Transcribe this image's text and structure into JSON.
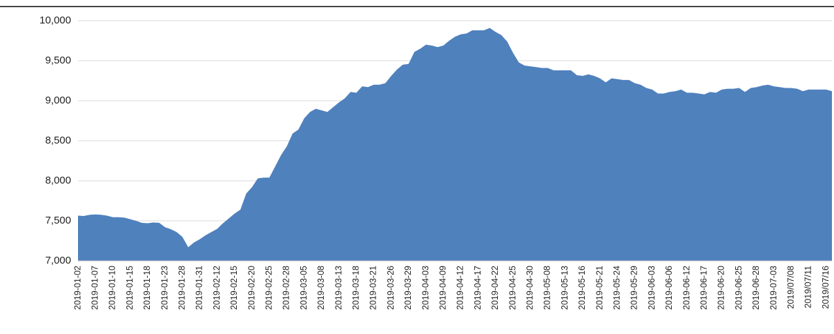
{
  "chart_data": {
    "type": "area",
    "color": "#4f81bd",
    "grid": true,
    "categories": [
      "2019-01-02",
      null,
      null,
      "2019-01-07",
      null,
      null,
      "2019-01-10",
      null,
      null,
      "2019-01-15",
      null,
      null,
      "2019-01-18",
      null,
      null,
      "2019-01-23",
      null,
      null,
      "2019-01-28",
      null,
      null,
      "2019-01-31",
      null,
      null,
      "2019-02-12",
      null,
      null,
      "2019-02-15",
      null,
      null,
      "2019-02-20",
      null,
      null,
      "2019-02-25",
      null,
      null,
      "2019-02-28",
      null,
      null,
      "2019-03-05",
      null,
      null,
      "2019-03-08",
      null,
      null,
      "2019-03-13",
      null,
      null,
      "2019-03-18",
      null,
      null,
      "2019-03-21",
      null,
      null,
      "2019-03-26",
      null,
      null,
      "2019-03-29",
      null,
      null,
      "2019-04-03",
      null,
      null,
      "2019-04-09",
      null,
      null,
      "2019-04-12",
      null,
      null,
      "2019-04-17",
      null,
      null,
      "2019-04-22",
      null,
      null,
      "2019-04-25",
      null,
      null,
      "2019-04-30",
      null,
      null,
      "2019-05-08",
      null,
      null,
      "2019-05-13",
      null,
      null,
      "2019-05-16",
      null,
      null,
      "2019-05-21",
      null,
      null,
      "2019-05-24",
      null,
      null,
      "2019-05-29",
      null,
      null,
      "2019-06-03",
      null,
      null,
      "2019-06-06",
      null,
      null,
      "2019-06-12",
      null,
      null,
      "2019-06-17",
      null,
      null,
      "2019-06-20",
      null,
      null,
      "2019-06-25",
      null,
      null,
      "2019-06-28",
      null,
      null,
      "2019-07-03",
      null,
      null,
      "2019/07/08",
      null,
      null,
      "2019/07/11",
      null,
      null,
      "2019/07/16",
      null
    ],
    "values": [
      7565,
      7560,
      7575,
      7580,
      7575,
      7565,
      7545,
      7545,
      7540,
      7520,
      7500,
      7475,
      7470,
      7480,
      7475,
      7420,
      7395,
      7360,
      7300,
      7170,
      7230,
      7270,
      7320,
      7360,
      7400,
      7470,
      7530,
      7590,
      7640,
      7840,
      7920,
      8030,
      8040,
      8040,
      8180,
      8320,
      8430,
      8590,
      8640,
      8780,
      8860,
      8900,
      8880,
      8860,
      8920,
      8980,
      9030,
      9110,
      9100,
      9180,
      9170,
      9200,
      9200,
      9220,
      9310,
      9390,
      9450,
      9460,
      9610,
      9650,
      9700,
      9690,
      9670,
      9690,
      9750,
      9800,
      9830,
      9840,
      9880,
      9880,
      9880,
      9910,
      9860,
      9820,
      9740,
      9600,
      9480,
      9440,
      9430,
      9420,
      9410,
      9410,
      9380,
      9380,
      9380,
      9380,
      9320,
      9310,
      9330,
      9310,
      9280,
      9230,
      9280,
      9270,
      9260,
      9260,
      9220,
      9200,
      9160,
      9140,
      9090,
      9090,
      9110,
      9120,
      9140,
      9100,
      9100,
      9090,
      9080,
      9110,
      9100,
      9140,
      9150,
      9150,
      9160,
      9110,
      9160,
      9170,
      9190,
      9200,
      9180,
      9170,
      9160,
      9160,
      9150,
      9120,
      9140,
      9140,
      9140,
      9140,
      9120
    ],
    "ylim": [
      7000,
      10000
    ],
    "yticks": [
      {
        "value": 7000,
        "label": "7,000"
      },
      {
        "value": 7500,
        "label": "7,500"
      },
      {
        "value": 8000,
        "label": "8,000"
      },
      {
        "value": 8500,
        "label": "8,500"
      },
      {
        "value": 9000,
        "label": "9,000"
      },
      {
        "value": 9500,
        "label": "9,500"
      },
      {
        "value": 10000,
        "label": "10,000"
      }
    ]
  }
}
